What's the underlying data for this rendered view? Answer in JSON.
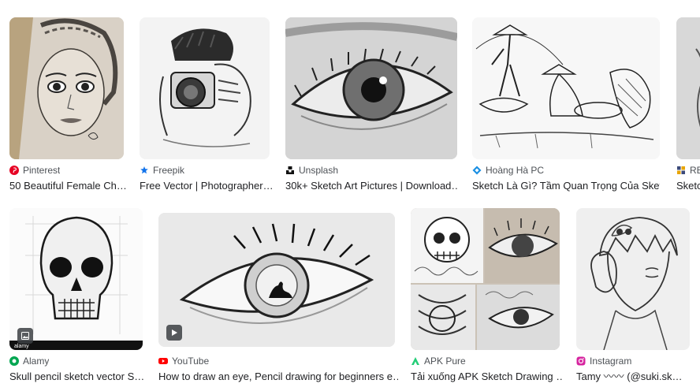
{
  "row1": [
    {
      "source": "Pinterest",
      "title": "50 Beautiful Female Ch…",
      "icon": "pinterest-icon",
      "color": "#e60023"
    },
    {
      "source": "Freepik",
      "title": "Free Vector | Photographer…",
      "icon": "freepik-icon",
      "color": "#1273eb"
    },
    {
      "source": "Unsplash",
      "title": "30k+ Sketch Art Pictures | Download…",
      "icon": "unsplash-icon",
      "color": "#111111"
    },
    {
      "source": "Hoàng Hà PC",
      "title": "Sketch Là Gì? Tầm Quan Trọng Của Sket…",
      "icon": "hoangha-icon",
      "color": "#1a8fe3"
    },
    {
      "source": "RE",
      "title": "Sketc",
      "icon": "generic-site-icon",
      "color": "#3c4a7a"
    }
  ],
  "row2": [
    {
      "source": "Alamy",
      "title": "Skull pencil sketch vector S…",
      "icon": "alamy-icon",
      "color": "#00a651",
      "badge": "image-icon"
    },
    {
      "source": "YouTube",
      "title": "How to draw an eye, Pencil drawing for beginners e…",
      "icon": "youtube-icon",
      "color": "#ff0000",
      "badge": "play-icon"
    },
    {
      "source": "APK Pure",
      "title": "Tải xuống APK Sketch Drawing …",
      "icon": "apkpure-icon",
      "color": "#24cd77"
    },
    {
      "source": "Instagram",
      "title": "Tamy 〰〰 (@suki.sk…",
      "icon": "instagram-icon",
      "color": "#d6249f"
    }
  ],
  "alamy_watermark": "alamy"
}
